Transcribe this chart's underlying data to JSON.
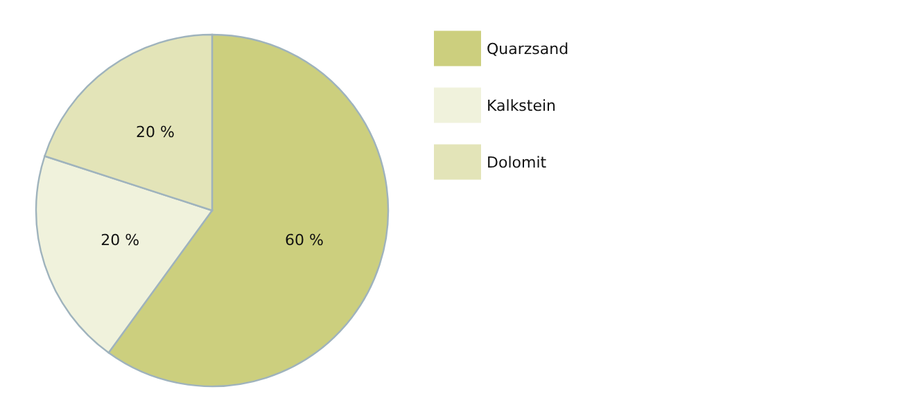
{
  "chart_data": {
    "type": "pie",
    "categories": [
      "Quarzsand",
      "Kalkstein",
      "Dolomit"
    ],
    "values": [
      60,
      20,
      20
    ],
    "colors": [
      "#cccf7e",
      "#f0f2dc",
      "#e3e4b8"
    ],
    "value_labels": [
      "60 %",
      "20 %",
      "20 %"
    ],
    "legend": "top right"
  }
}
